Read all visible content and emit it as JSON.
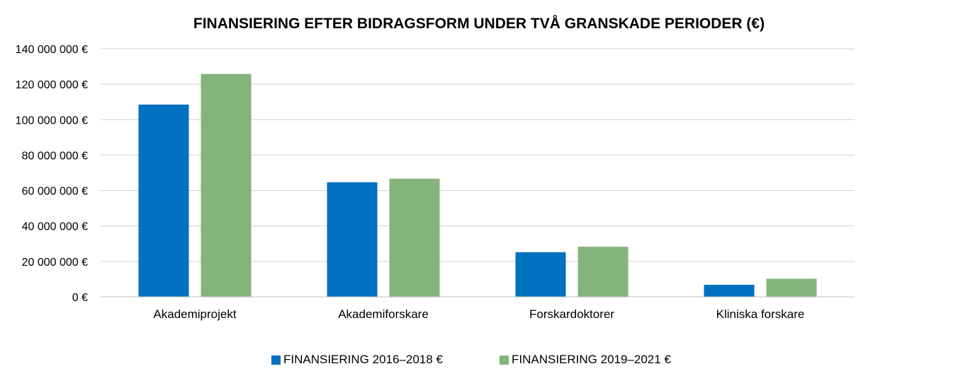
{
  "chart_data": {
    "type": "bar",
    "title": "FINANSIERING EFTER BIDRAGSFORM UNDER TVÅ GRANSKADE PERIODER (€)",
    "categories": [
      "Akademiprojekt",
      "Akademiforskare",
      "Forskardoktorer",
      "Kliniska forskare"
    ],
    "series": [
      {
        "name": "FINANSIERING 2016–2018 €",
        "color": "#0070c0",
        "values": [
          108500000,
          64700000,
          25200000,
          6800000
        ]
      },
      {
        "name": "FINANSIERING 2019–2021 €",
        "color": "#84b47c",
        "values": [
          125800000,
          66700000,
          28300000,
          10200000
        ]
      }
    ],
    "ylim": [
      0,
      140000000
    ],
    "yticks": [
      0,
      20000000,
      40000000,
      60000000,
      80000000,
      100000000,
      120000000,
      140000000
    ],
    "ytick_labels": [
      "0 €",
      "20 000 000 €",
      "40 000 000 €",
      "60 000 000 €",
      "80 000 000 €",
      "100 000 000 €",
      "120 000 000 €",
      "140 000 000 €"
    ],
    "grid": true,
    "legend_position": "bottom"
  }
}
